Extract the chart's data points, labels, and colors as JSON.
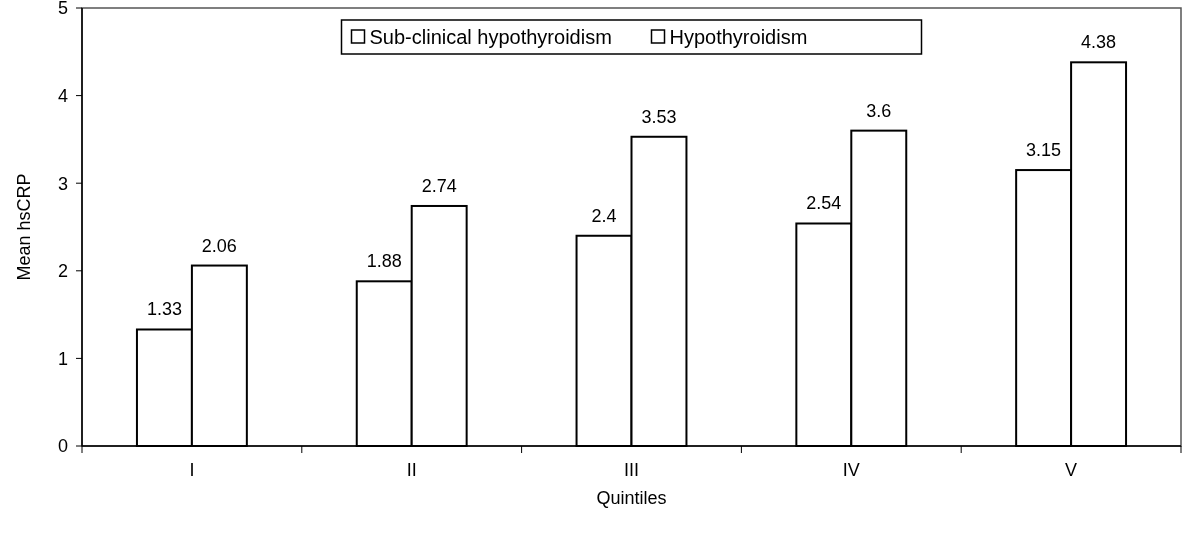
{
  "chart_data": {
    "type": "bar",
    "xlabel": "Quintiles",
    "ylabel": "Mean hsCRP",
    "categories": [
      "I",
      "II",
      "III",
      "IV",
      "V"
    ],
    "series": [
      {
        "name": "Sub-clinical hypothyroidism",
        "color": "#ffffff",
        "values": [
          1.33,
          1.88,
          2.4,
          2.54,
          3.15
        ]
      },
      {
        "name": "Hypothyroidism",
        "color": "#ffffff",
        "values": [
          2.06,
          2.74,
          3.53,
          3.6,
          4.38
        ]
      }
    ],
    "ylim": [
      0,
      5
    ],
    "yticks": [
      0,
      1,
      2,
      3,
      4,
      5
    ],
    "data_labels": true,
    "legend": "top",
    "grid": false
  }
}
